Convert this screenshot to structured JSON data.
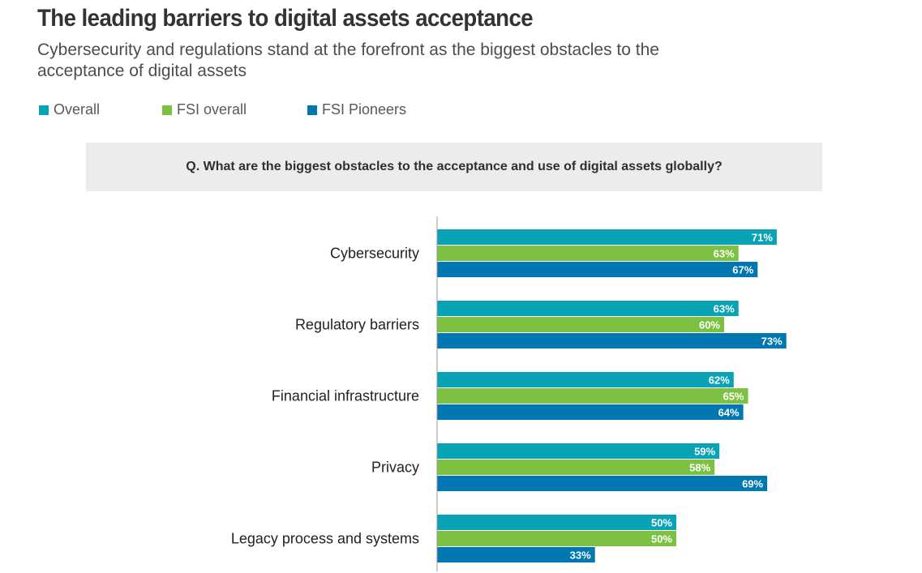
{
  "title": "The leading barriers to digital assets acceptance",
  "subtitle": "Cybersecurity and regulations stand at the forefront as the biggest obstacles to the acceptance of digital assets",
  "question": "Q. What are the biggest obstacles to the acceptance and use of digital assets globally?",
  "colors": {
    "overall": "#0aa3b5",
    "fsi_overall": "#7cc142",
    "fsi_pioneers": "#0077b0"
  },
  "chart_data": {
    "type": "bar",
    "orientation": "horizontal",
    "categories": [
      "Cybersecurity",
      "Regulatory barriers",
      "Financial infrastructure",
      "Privacy",
      "Legacy process and systems"
    ],
    "series": [
      {
        "name": "Overall",
        "values": [
          71,
          63,
          62,
          59,
          50
        ]
      },
      {
        "name": "FSI overall",
        "values": [
          63,
          60,
          65,
          58,
          50
        ]
      },
      {
        "name": "FSI Pioneers",
        "values": [
          67,
          73,
          64,
          69,
          33
        ]
      }
    ],
    "value_suffix": "%",
    "xlim": [
      0,
      100
    ],
    "legend_position": "top-left",
    "grid": false
  }
}
